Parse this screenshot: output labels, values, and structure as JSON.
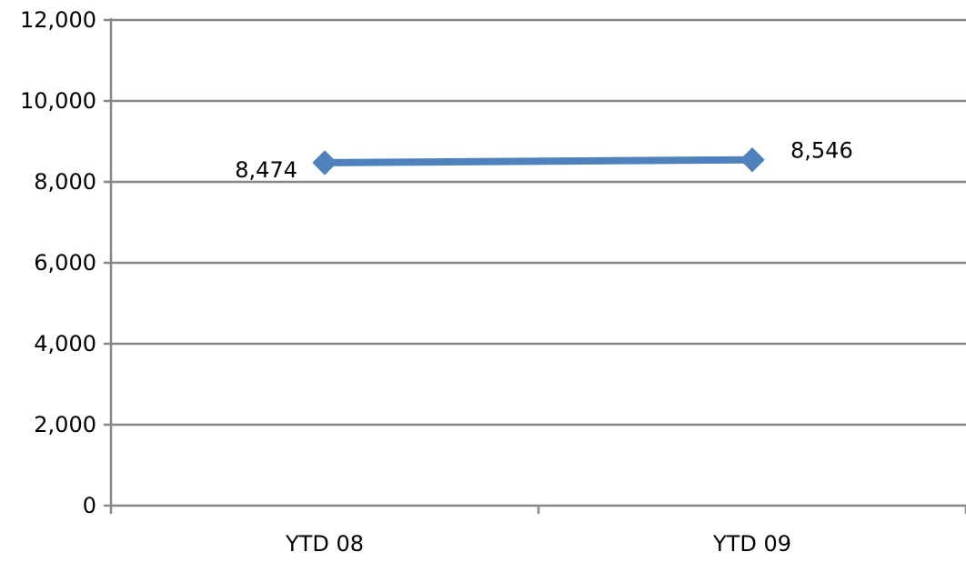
{
  "chart_data": {
    "type": "line",
    "title": "",
    "xlabel": "",
    "ylabel": "",
    "categories": [
      "YTD 08",
      "YTD 09"
    ],
    "series": [
      {
        "values": [
          8474,
          8546
        ],
        "data_labels": [
          "8,474",
          "8,546"
        ]
      }
    ],
    "ylim": [
      0,
      12000
    ],
    "yticks": [
      0,
      2000,
      4000,
      6000,
      8000,
      10000,
      12000
    ],
    "ytick_labels": [
      "0",
      "2,000",
      "4,000",
      "6,000",
      "8,000",
      "10,000",
      "12,000"
    ],
    "grid": true,
    "legend": "none",
    "marker": "diamond",
    "colors": {
      "series": "#4f81bd",
      "grid": "#868686",
      "axis": "#868686"
    }
  }
}
